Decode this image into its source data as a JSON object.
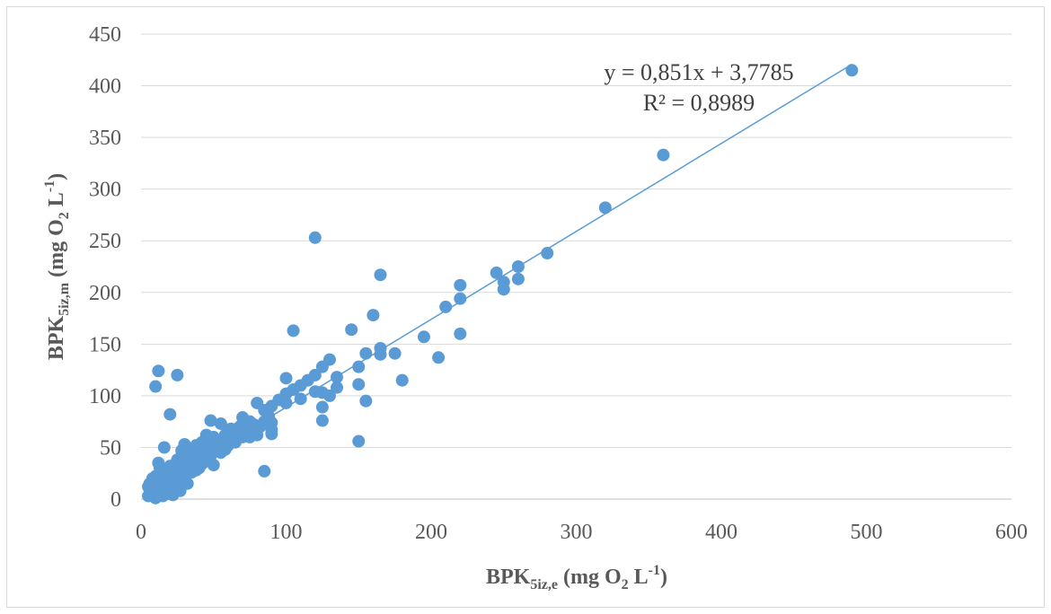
{
  "chart_data": {
    "type": "scatter",
    "xlim": [
      0,
      600
    ],
    "ylim": [
      0,
      450
    ],
    "x_ticks": [
      0,
      100,
      200,
      300,
      400,
      500,
      600
    ],
    "y_ticks": [
      0,
      50,
      100,
      150,
      200,
      250,
      300,
      350,
      400,
      450
    ],
    "x_tick_labels": [
      "0",
      "100",
      "200",
      "300",
      "400",
      "500",
      "600"
    ],
    "y_tick_labels": [
      "0",
      "50",
      "100",
      "150",
      "200",
      "250",
      "300",
      "350",
      "400",
      "450"
    ],
    "xlabel": {
      "main": "BPK",
      "sub": "5iz,e",
      "rest": " (mg O",
      "sub2": "2",
      "rest2": " L",
      "sup": "-1",
      "end": ")"
    },
    "ylabel": {
      "main": "BPK",
      "sub": "5iz,m",
      "rest": " (mg O",
      "sub2": "2",
      "rest2": " L",
      "sup": "-1",
      "end": ")"
    },
    "grid": "horizontal",
    "marker_color": "#5B9BD5",
    "trendline_color": "#5B9BD5",
    "trendline": {
      "slope": 0.851,
      "intercept": 3.7785,
      "x_range": [
        5,
        490
      ]
    },
    "equation_text": "y = 0,851x + 3,7785",
    "r2_text": "R² = 0,8989",
    "points": [
      [
        490,
        415
      ],
      [
        360,
        333
      ],
      [
        320,
        282
      ],
      [
        280,
        238
      ],
      [
        260,
        225
      ],
      [
        260,
        213
      ],
      [
        250,
        210
      ],
      [
        250,
        203
      ],
      [
        245,
        219
      ],
      [
        220,
        207
      ],
      [
        220,
        194
      ],
      [
        220,
        160
      ],
      [
        210,
        186
      ],
      [
        205,
        137
      ],
      [
        195,
        157
      ],
      [
        180,
        115
      ],
      [
        175,
        141
      ],
      [
        165,
        217
      ],
      [
        165,
        146
      ],
      [
        165,
        140
      ],
      [
        160,
        178
      ],
      [
        155,
        141
      ],
      [
        155,
        95
      ],
      [
        150,
        128
      ],
      [
        150,
        111
      ],
      [
        150,
        56
      ],
      [
        145,
        164
      ],
      [
        135,
        118
      ],
      [
        135,
        108
      ],
      [
        130,
        135
      ],
      [
        130,
        100
      ],
      [
        125,
        128
      ],
      [
        125,
        103
      ],
      [
        125,
        89
      ],
      [
        125,
        76
      ],
      [
        120,
        253
      ],
      [
        120,
        120
      ],
      [
        120,
        104
      ],
      [
        115,
        115
      ],
      [
        110,
        110
      ],
      [
        110,
        97
      ],
      [
        105,
        163
      ],
      [
        105,
        106
      ],
      [
        100,
        117
      ],
      [
        100,
        102
      ],
      [
        100,
        93
      ],
      [
        95,
        96
      ],
      [
        90,
        90
      ],
      [
        90,
        74
      ],
      [
        90,
        67
      ],
      [
        90,
        63
      ],
      [
        88,
        80
      ],
      [
        85,
        86
      ],
      [
        85,
        27
      ],
      [
        82,
        70
      ],
      [
        80,
        93
      ],
      [
        80,
        68
      ],
      [
        80,
        62
      ],
      [
        78,
        72
      ],
      [
        75,
        75
      ],
      [
        75,
        60
      ],
      [
        72,
        66
      ],
      [
        70,
        79
      ],
      [
        70,
        60
      ],
      [
        68,
        70
      ],
      [
        65,
        55
      ],
      [
        65,
        65
      ],
      [
        62,
        68
      ],
      [
        60,
        58
      ],
      [
        60,
        52
      ],
      [
        58,
        62
      ],
      [
        55,
        73
      ],
      [
        55,
        45
      ],
      [
        52,
        55
      ],
      [
        50,
        60
      ],
      [
        50,
        48
      ],
      [
        50,
        33
      ],
      [
        48,
        76
      ],
      [
        48,
        52
      ],
      [
        45,
        62
      ],
      [
        45,
        45
      ],
      [
        42,
        55
      ],
      [
        40,
        48
      ],
      [
        40,
        40
      ],
      [
        38,
        52
      ],
      [
        38,
        36
      ],
      [
        35,
        45
      ],
      [
        35,
        30
      ],
      [
        32,
        40
      ],
      [
        32,
        25
      ],
      [
        30,
        53
      ],
      [
        30,
        35
      ],
      [
        30,
        20
      ],
      [
        28,
        47
      ],
      [
        28,
        28
      ],
      [
        27,
        8
      ],
      [
        25,
        120
      ],
      [
        25,
        38
      ],
      [
        25,
        30
      ],
      [
        24,
        18
      ],
      [
        22,
        25
      ],
      [
        22,
        12
      ],
      [
        20,
        82
      ],
      [
        20,
        32
      ],
      [
        20,
        20
      ],
      [
        20,
        5
      ],
      [
        18,
        22
      ],
      [
        18,
        15
      ],
      [
        16,
        50
      ],
      [
        16,
        28
      ],
      [
        15,
        18
      ],
      [
        15,
        10
      ],
      [
        14,
        25
      ],
      [
        13,
        30
      ],
      [
        12,
        124
      ],
      [
        12,
        35
      ],
      [
        12,
        20
      ],
      [
        12,
        12
      ],
      [
        11,
        6
      ],
      [
        10,
        109
      ],
      [
        10,
        22
      ],
      [
        10,
        15
      ],
      [
        10,
        8
      ],
      [
        10,
        1
      ],
      [
        9,
        18
      ],
      [
        9,
        12
      ],
      [
        8,
        20
      ],
      [
        8,
        10
      ],
      [
        8,
        4
      ],
      [
        7,
        16
      ],
      [
        7,
        14
      ],
      [
        6,
        15
      ],
      [
        6,
        10
      ],
      [
        5,
        12
      ],
      [
        5,
        3
      ],
      [
        18,
        8
      ],
      [
        25,
        12
      ],
      [
        32,
        15
      ],
      [
        40,
        30
      ],
      [
        45,
        38
      ],
      [
        55,
        50
      ],
      [
        62,
        57
      ],
      [
        70,
        62
      ],
      [
        85,
        75
      ],
      [
        22,
        4
      ],
      [
        15,
        3
      ],
      [
        38,
        28
      ],
      [
        28,
        42
      ],
      [
        35,
        26
      ],
      [
        42,
        34
      ],
      [
        48,
        42
      ],
      [
        58,
        48
      ],
      [
        65,
        58
      ]
    ]
  }
}
